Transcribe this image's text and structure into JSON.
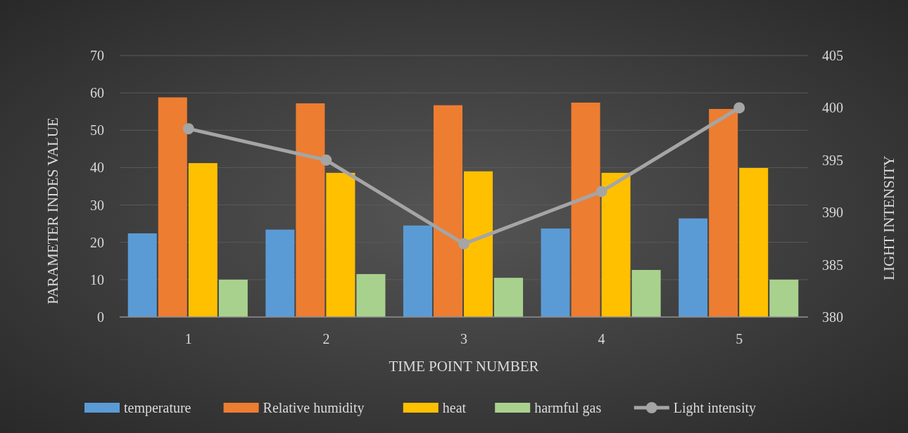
{
  "chart_data": {
    "type": "bar",
    "xlabel": "TIME POINT NUMBER",
    "ylabel": "PARAMETER INDES VALUE",
    "y2label": "LIGHT INTENSITY",
    "categories": [
      "1",
      "2",
      "3",
      "4",
      "5"
    ],
    "series": [
      {
        "name": "temperature",
        "color": "#5b9bd5",
        "values": [
          22.4,
          23.4,
          24.5,
          23.7,
          26.4
        ]
      },
      {
        "name": "Relative humidity",
        "color": "#ed7d31",
        "values": [
          58.8,
          57.2,
          56.7,
          57.4,
          55.7
        ]
      },
      {
        "name": "heat",
        "color": "#ffc000",
        "values": [
          41.2,
          38.6,
          39.0,
          38.6,
          39.9
        ]
      },
      {
        "name": "harmful gas",
        "color": "#a9d18e",
        "values": [
          10.0,
          11.5,
          10.5,
          12.6,
          10.0
        ]
      },
      {
        "name": "Light intensity",
        "type": "line",
        "axis": "y2",
        "color": "#a5a5a5",
        "marker": "circle",
        "values": [
          398,
          395,
          387,
          392,
          400
        ]
      }
    ],
    "ylim": [
      0,
      70
    ],
    "yticks": [
      0,
      10,
      20,
      30,
      40,
      50,
      60,
      70
    ],
    "y2lim": [
      380,
      405
    ],
    "y2ticks": [
      380,
      385,
      390,
      395,
      400,
      405
    ],
    "grid": "y",
    "legend": "bottom"
  }
}
